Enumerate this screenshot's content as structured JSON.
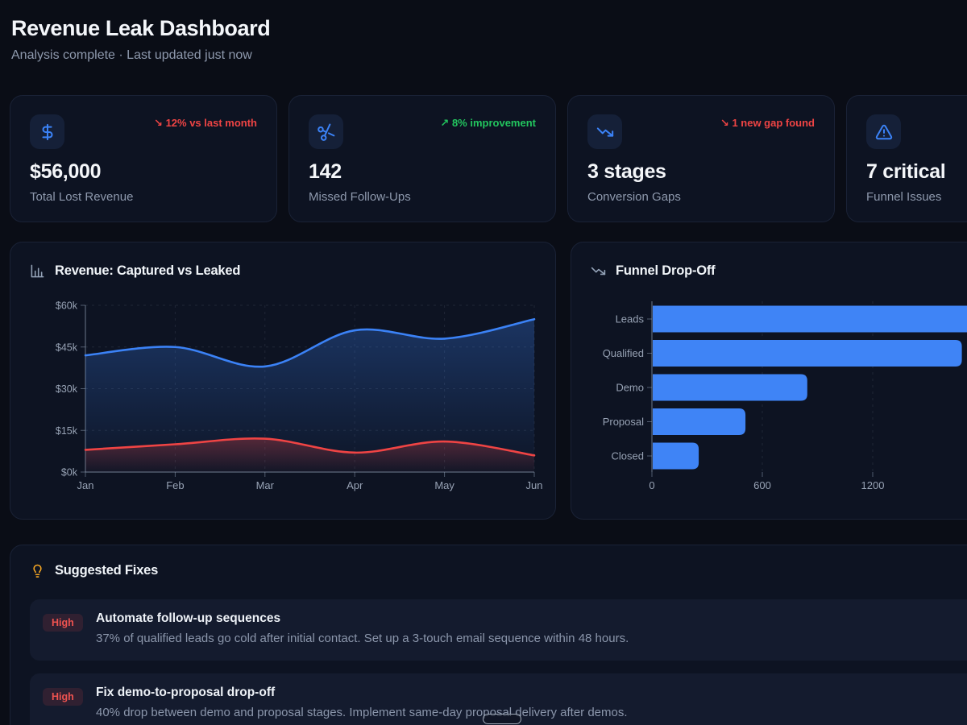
{
  "header": {
    "title": "Revenue Leak Dashboard",
    "subtitle": "Analysis complete · Last updated just now"
  },
  "kpis": [
    {
      "icon": "dollar-sign",
      "value": "$56,000",
      "label": "Total Lost Revenue",
      "delta": {
        "arrow": "↘",
        "text": "12% vs last month",
        "color": "#ef4444"
      }
    },
    {
      "icon": "scissors",
      "value": "142",
      "label": "Missed Follow-Ups",
      "delta": {
        "arrow": "↗",
        "text": "8% improvement",
        "color": "#22c55e"
      }
    },
    {
      "icon": "trending-down",
      "value": "3 stages",
      "label": "Conversion Gaps",
      "delta": {
        "arrow": "↘",
        "text": "1 new gap found",
        "color": "#ef4444"
      }
    },
    {
      "icon": "alert-triangle",
      "value": "7 critical",
      "label": "Funnel Issues",
      "delta": {
        "arrow": "",
        "text": "",
        "color": "#ef4444"
      }
    }
  ],
  "chart_data": [
    {
      "type": "area",
      "title": "Revenue: Captured vs Leaked",
      "x": [
        "Jan",
        "Feb",
        "Mar",
        "Apr",
        "May",
        "Jun"
      ],
      "series": [
        {
          "name": "Captured",
          "color": "#3b82f6",
          "values": [
            42000,
            45000,
            38000,
            51000,
            48000,
            55000
          ]
        },
        {
          "name": "Leaked",
          "color": "#ef4444",
          "values": [
            8000,
            10000,
            12000,
            7000,
            11000,
            6000
          ]
        }
      ],
      "ylim": [
        0,
        60000
      ],
      "yticks": [
        0,
        15000,
        30000,
        45000,
        60000
      ],
      "ytick_labels": [
        "$0k",
        "$15k",
        "$30k",
        "$45k",
        "$60k"
      ],
      "grid": "dashed",
      "legend": "none"
    },
    {
      "type": "bar",
      "orientation": "horizontal",
      "title": "Funnel Drop-Off",
      "categories": [
        "Leads",
        "Qualified",
        "Demo",
        "Proposal",
        "Closed"
      ],
      "values": [
        2400,
        1680,
        840,
        504,
        250
      ],
      "bar_color": "#3f84f6",
      "xticks": [
        0,
        600,
        1200
      ],
      "xtick_labels": [
        "0",
        "600",
        "1200"
      ],
      "xlim": [
        0,
        2530
      ],
      "grid": "dashed",
      "legend": "none"
    }
  ],
  "fixes": {
    "title": "Suggested Fixes",
    "items": [
      {
        "priority": "High",
        "title": "Automate follow-up sequences",
        "description": "37% of qualified leads go cold after initial contact. Set up a 3-touch email sequence within 48 hours."
      },
      {
        "priority": "High",
        "title": "Fix demo-to-proposal drop-off",
        "description": "40% drop between demo and proposal stages. Implement same-day proposal delivery after demos."
      }
    ]
  },
  "colors": {
    "background": "#0a0d16",
    "card": "#0d1322",
    "accent_blue": "#3b82f6",
    "bar_blue": "#3f84f6",
    "negative_red": "#ef4444",
    "positive_green": "#22c55e",
    "amber": "#f5a623",
    "muted_text": "#8e99ad"
  }
}
